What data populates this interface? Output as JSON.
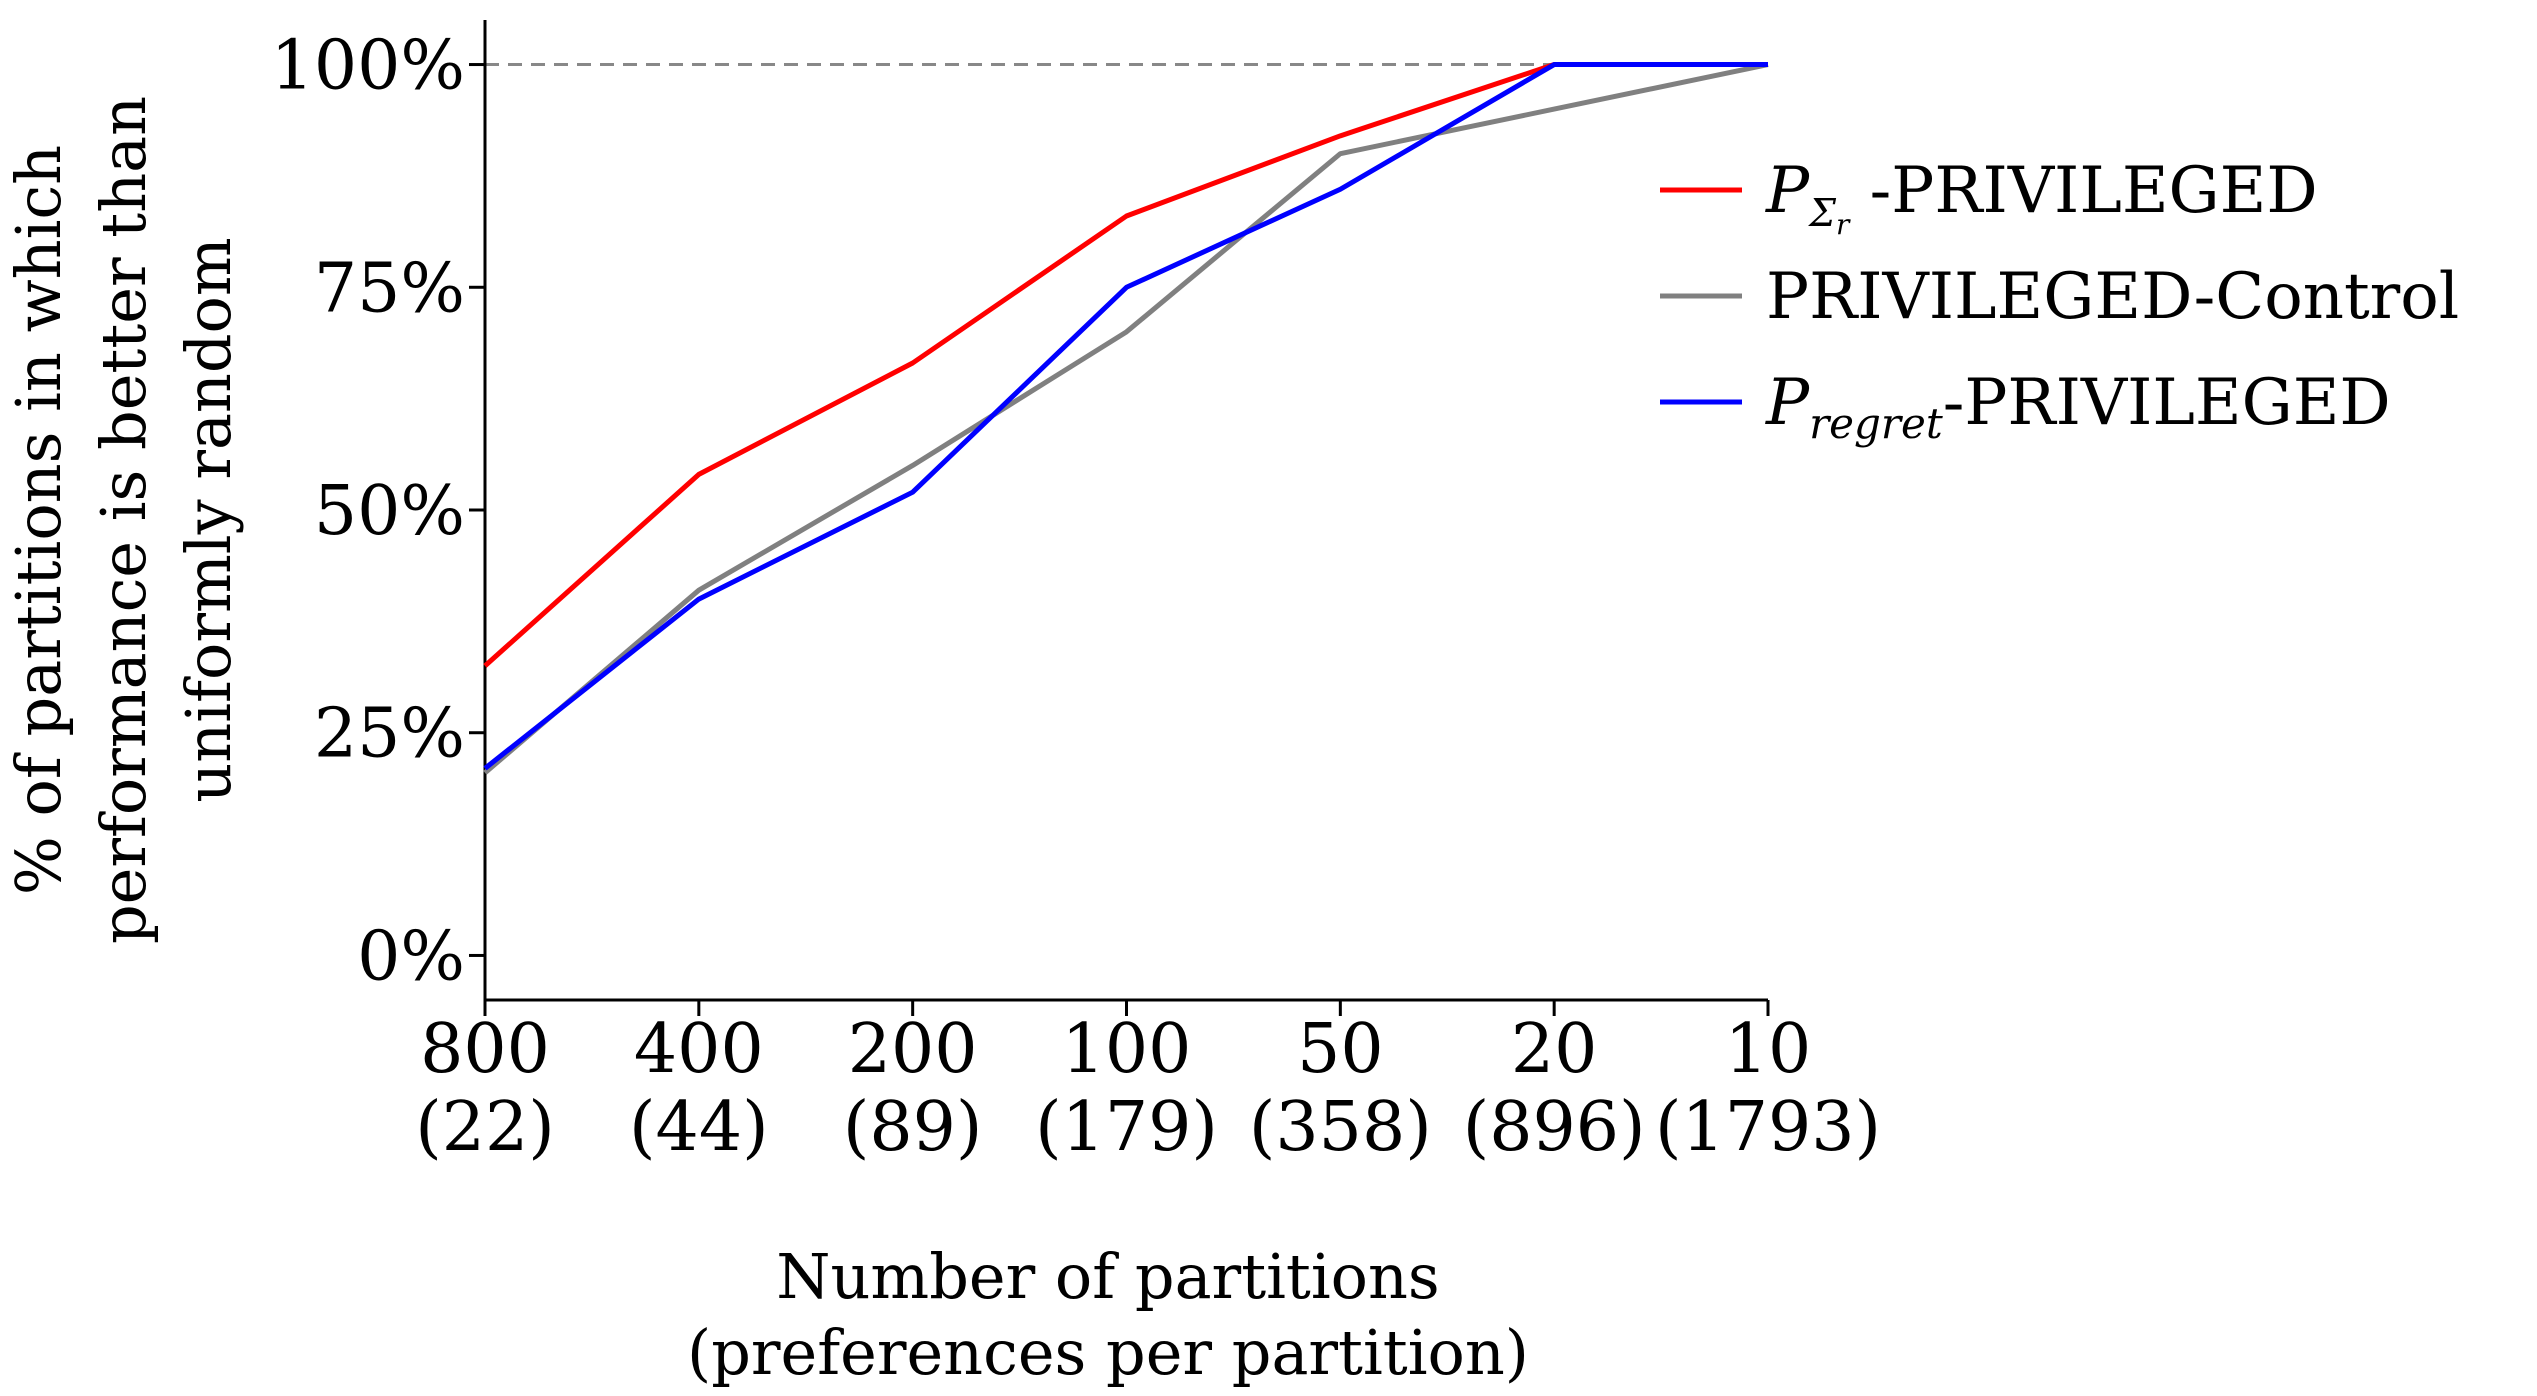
{
  "chart_data": {
    "type": "line",
    "title": "",
    "xlabel_lines": [
      "Number of partitions",
      "(preferences per partition)"
    ],
    "ylabel_lines": [
      "% of partitions in which",
      "performance is better than",
      "uniformly random"
    ],
    "categories": [
      {
        "top": "800",
        "bottom": "(22)"
      },
      {
        "top": "400",
        "bottom": "(44)"
      },
      {
        "top": "200",
        "bottom": "(89)"
      },
      {
        "top": "100",
        "bottom": "(179)"
      },
      {
        "top": "50",
        "bottom": "(358)"
      },
      {
        "top": "20",
        "bottom": "(896)"
      },
      {
        "top": "10",
        "bottom": "(1793)"
      }
    ],
    "y_ticks": [
      0,
      25,
      50,
      75,
      100
    ],
    "y_tick_labels": [
      "0%",
      "25%",
      "50%",
      "75%",
      "100%"
    ],
    "ylim": [
      -5,
      105
    ],
    "reference_line": {
      "y": 100,
      "style": "dashed",
      "color": "#888888"
    },
    "series": [
      {
        "name": "P_Σr-PRIVILEGED",
        "legend_main": "P",
        "legend_sub": "Σ",
        "legend_subsub": "r",
        "legend_suffix": " -PRIVILEGED",
        "color": "#ff0000",
        "values": [
          32.5,
          54,
          66.5,
          83,
          92,
          100,
          100
        ]
      },
      {
        "name": "PRIVILEGED-Control",
        "legend_label": "PRIVILEGED-Control",
        "color": "#808080",
        "values": [
          20.5,
          41,
          55,
          70,
          90,
          95,
          100
        ]
      },
      {
        "name": "P_regret-PRIVILEGED",
        "legend_main": "P",
        "legend_sub": "regret",
        "legend_suffix": "-PRIVILEGED",
        "color": "#0000ff",
        "values": [
          21,
          40,
          52,
          75,
          86,
          100,
          100
        ]
      }
    ]
  }
}
